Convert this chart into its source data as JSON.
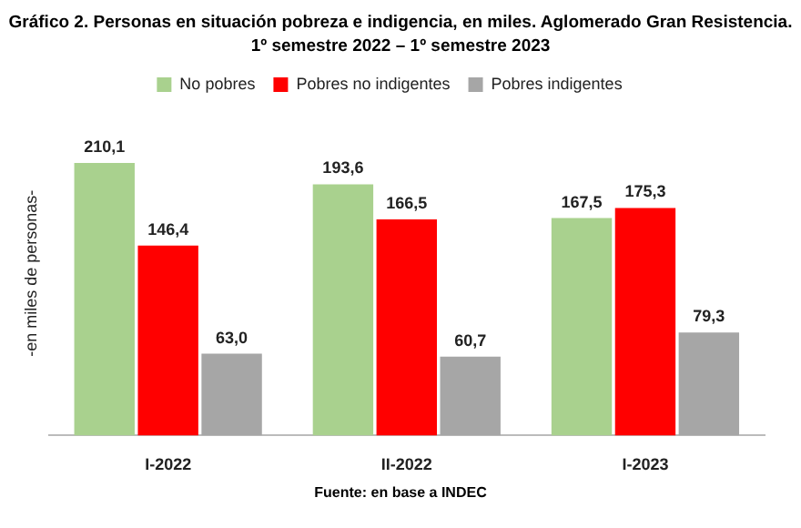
{
  "chart_data": {
    "type": "bar",
    "title": "Gráfico 2. Personas en situación pobreza e indigencia, en miles. Aglomerado Gran Resistencia.",
    "subtitle": "1º semestre 2022 – 1º semestre 2023",
    "ylabel": "-en miles de personas-",
    "categories": [
      "I-2022",
      "II-2022",
      "I-2023"
    ],
    "series": [
      {
        "name": "No pobres",
        "color": "#a9d18e",
        "values": [
          210.1,
          193.6,
          167.5
        ],
        "value_labels": [
          "210,1",
          "193,6",
          "167,5"
        ]
      },
      {
        "name": "Pobres no indigentes",
        "color": "#ff0000",
        "values": [
          146.4,
          166.5,
          175.3
        ],
        "value_labels": [
          "146,4",
          "166,5",
          "175,3"
        ]
      },
      {
        "name": "Pobres indigentes",
        "color": "#a6a6a6",
        "values": [
          63.0,
          60.7,
          79.3
        ],
        "value_labels": [
          "63,0",
          "60,7",
          "79,3"
        ]
      }
    ],
    "tick_labels": "x",
    "grid": false,
    "legend": "top",
    "annotations": [
      "Fuente: en base a INDEC"
    ]
  }
}
